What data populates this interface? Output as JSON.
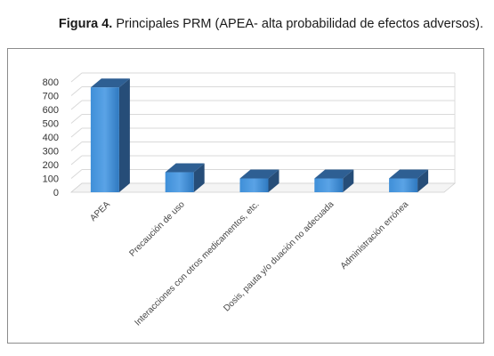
{
  "caption": {
    "label": "Figura 4.",
    "text": "Principales PRM (APEA- alta probabilidad de efectos adversos)."
  },
  "chart_data": {
    "type": "bar",
    "style": "3d-column",
    "categories": [
      "APEA",
      "Precaución de uso",
      "Interacciones con otros medicamentos, etc.",
      "Dosis, pauta y/o duación no adecuada",
      "Administración errónea"
    ],
    "values": [
      760,
      145,
      100,
      100,
      100
    ],
    "ylim": [
      0,
      800
    ],
    "yticks": [
      "0",
      "100",
      "200",
      "300",
      "400",
      "500",
      "600",
      "700",
      "800"
    ],
    "grid": true,
    "legend": "none",
    "title": "",
    "xlabel": "",
    "ylabel": "",
    "colors": {
      "bar_front": "#3b86cf",
      "bar_top": "#2e5f93",
      "bar_side": "#264d78",
      "grid": "#d9d9d9"
    }
  }
}
